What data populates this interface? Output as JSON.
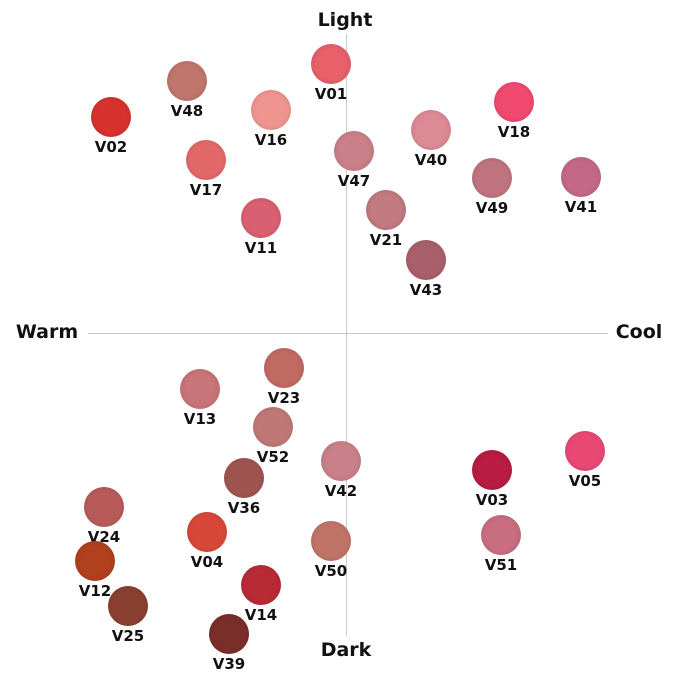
{
  "axes": {
    "top": "Light",
    "bottom": "Dark",
    "left": "Warm",
    "right": "Cool"
  },
  "swatches": [
    {
      "label": "V01",
      "color": "#e8606a"
    },
    {
      "label": "V48",
      "color": "#c0766c"
    },
    {
      "label": "V02",
      "color": "#d8322e"
    },
    {
      "label": "V16",
      "color": "#ee9590"
    },
    {
      "label": "V18",
      "color": "#f04a70"
    },
    {
      "label": "V40",
      "color": "#dc8a94"
    },
    {
      "label": "V17",
      "color": "#e3686a"
    },
    {
      "label": "V47",
      "color": "#c98088"
    },
    {
      "label": "V49",
      "color": "#c07480"
    },
    {
      "label": "V41",
      "color": "#c46888"
    },
    {
      "label": "V11",
      "color": "#d96070"
    },
    {
      "label": "V21",
      "color": "#c07a80"
    },
    {
      "label": "V43",
      "color": "#a8606c"
    },
    {
      "label": "V23",
      "color": "#c06a62"
    },
    {
      "label": "V13",
      "color": "#c87478"
    },
    {
      "label": "V52",
      "color": "#c07876"
    },
    {
      "label": "V42",
      "color": "#c98088"
    },
    {
      "label": "V36",
      "color": "#a05450"
    },
    {
      "label": "V03",
      "color": "#b81c42"
    },
    {
      "label": "V05",
      "color": "#e84874"
    },
    {
      "label": "V24",
      "color": "#b85a5a"
    },
    {
      "label": "V04",
      "color": "#d84838"
    },
    {
      "label": "V51",
      "color": "#c86e80"
    },
    {
      "label": "V50",
      "color": "#c07468"
    },
    {
      "label": "V12",
      "color": "#b0401e"
    },
    {
      "label": "V14",
      "color": "#b82a36"
    },
    {
      "label": "V25",
      "color": "#8a4030"
    },
    {
      "label": "V39",
      "color": "#7a2e2a"
    }
  ]
}
